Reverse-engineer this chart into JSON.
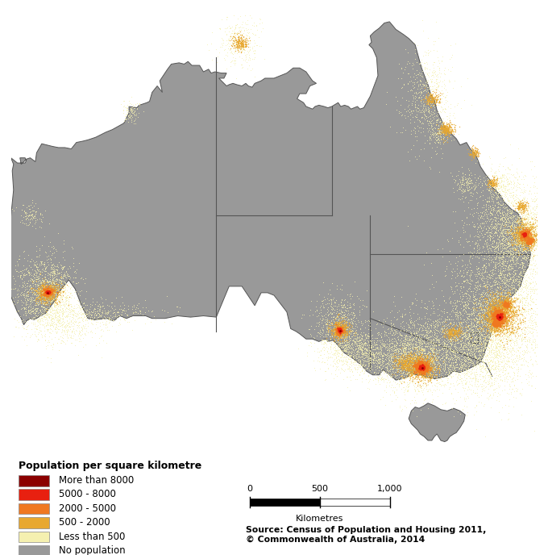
{
  "legend_title": "Population per square kilometre",
  "legend_entries": [
    {
      "label": "More than 8000",
      "color": "#8B0000"
    },
    {
      "label": "5000 - 8000",
      "color": "#E82010"
    },
    {
      "label": "2000 - 5000",
      "color": "#F07820"
    },
    {
      "label": "500 - 2000",
      "color": "#E8A830"
    },
    {
      "label": "Less than 500",
      "color": "#F5F0B0"
    },
    {
      "label": "No population",
      "color": "#999999"
    }
  ],
  "scalebar_label": "Kilometres",
  "scalebar_ticks": [
    "0",
    "500",
    "1,000"
  ],
  "source_text": "Source: Census of Population and Housing 2011,\n© Commonwealth of Australia, 2014",
  "background_color": "#ffffff",
  "map_background": "#999999",
  "coast_color": "#555555",
  "state_border_color": "#555555",
  "map_xlim": [
    113,
    154
  ],
  "map_ylim": [
    -44.5,
    -10
  ],
  "figsize": [
    6.8,
    6.88
  ],
  "dpi": 100
}
